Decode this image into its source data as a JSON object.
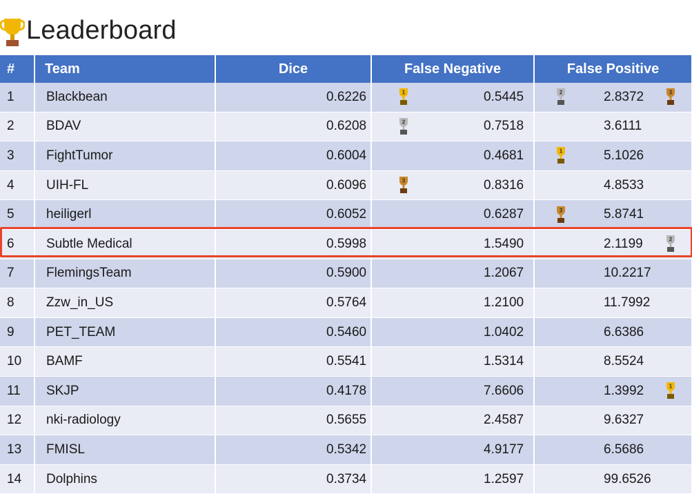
{
  "title": "Leaderboard",
  "headers": {
    "rank": "#",
    "team": "Team",
    "dice": "Dice",
    "fn": "False Negative",
    "fp": "False Positive"
  },
  "rows": [
    {
      "rank": "1",
      "team": "Blackbean",
      "dice": "0.6226",
      "fn": "0.5445",
      "fp": "2.8372",
      "dice_award": "1",
      "fn_award": "2",
      "fp_award": "3"
    },
    {
      "rank": "2",
      "team": "BDAV",
      "dice": "0.6208",
      "fn": "0.7518",
      "fp": "3.6111",
      "dice_award": "2",
      "fn_award": "",
      "fp_award": ""
    },
    {
      "rank": "3",
      "team": "FightTumor",
      "dice": "0.6004",
      "fn": "0.4681",
      "fp": "5.1026",
      "dice_award": "",
      "fn_award": "1",
      "fp_award": ""
    },
    {
      "rank": "4",
      "team": "UIH-FL",
      "dice": "0.6096",
      "fn": "0.8316",
      "fp": "4.8533",
      "dice_award": "3",
      "fn_award": "",
      "fp_award": ""
    },
    {
      "rank": "5",
      "team": "heiligerl",
      "dice": "0.6052",
      "fn": "0.6287",
      "fp": "5.8741",
      "dice_award": "",
      "fn_award": "3",
      "fp_award": ""
    },
    {
      "rank": "6",
      "team": "Subtle Medical",
      "dice": "0.5998",
      "fn": "1.5490",
      "fp": "2.1199",
      "dice_award": "",
      "fn_award": "",
      "fp_award": "2"
    },
    {
      "rank": "7",
      "team": "FlemingsTeam",
      "dice": "0.5900",
      "fn": "1.2067",
      "fp": "10.2217",
      "dice_award": "",
      "fn_award": "",
      "fp_award": ""
    },
    {
      "rank": "8",
      "team": "Zzw_in_US",
      "dice": "0.5764",
      "fn": "1.2100",
      "fp": "11.7992",
      "dice_award": "",
      "fn_award": "",
      "fp_award": ""
    },
    {
      "rank": "9",
      "team": "PET_TEAM",
      "dice": "0.5460",
      "fn": "1.0402",
      "fp": "6.6386",
      "dice_award": "",
      "fn_award": "",
      "fp_award": ""
    },
    {
      "rank": "10",
      "team": "BAMF",
      "dice": "0.5541",
      "fn": "1.5314",
      "fp": "8.5524",
      "dice_award": "",
      "fn_award": "",
      "fp_award": ""
    },
    {
      "rank": "11",
      "team": "SKJP",
      "dice": "0.4178",
      "fn": "7.6606",
      "fp": "1.3992",
      "dice_award": "",
      "fn_award": "",
      "fp_award": "1"
    },
    {
      "rank": "12",
      "team": "nki-radiology",
      "dice": "0.5655",
      "fn": "2.4587",
      "fp": "9.6327",
      "dice_award": "",
      "fn_award": "",
      "fp_award": ""
    },
    {
      "rank": "13",
      "team": "FMISL",
      "dice": "0.5342",
      "fn": "4.9177",
      "fp": "6.5686",
      "dice_award": "",
      "fn_award": "",
      "fp_award": ""
    },
    {
      "rank": "14",
      "team": "Dolphins",
      "dice": "0.3734",
      "fn": "1.2597",
      "fp": "99.6526",
      "dice_award": "",
      "fn_award": "",
      "fp_award": ""
    }
  ],
  "highlighted_team": "Subtle Medical",
  "colors": {
    "header": "#4472c4",
    "row_odd": "#cfd5ea",
    "row_even": "#e9ebf5",
    "highlight": "#e8442a",
    "gold": "#f2b705",
    "silver": "#b8b8b8",
    "bronze": "#c9862a"
  }
}
